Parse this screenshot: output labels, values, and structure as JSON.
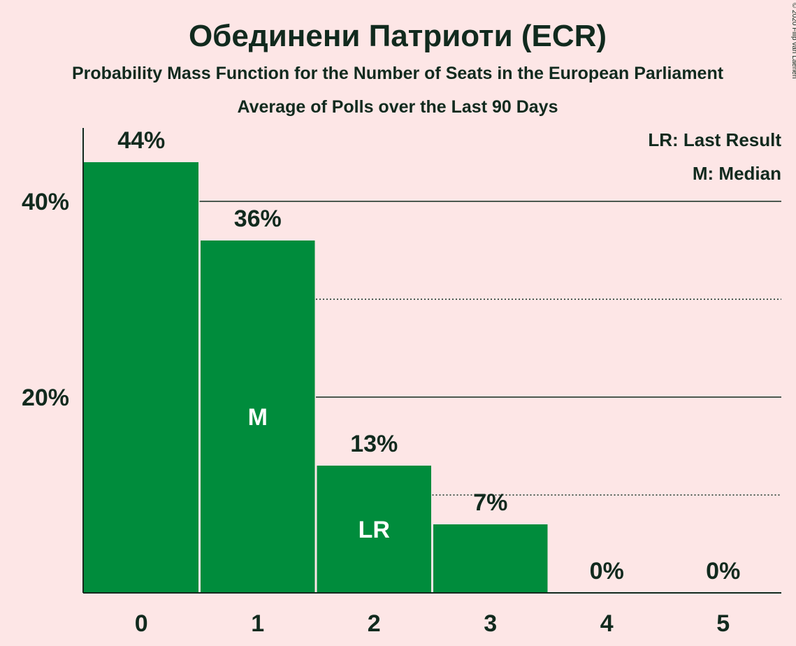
{
  "title": "Обединени Патриоти (ECR)",
  "subtitle": "Probability Mass Function for the Number of Seats in the European Parliament",
  "subtitle2": "Average of Polls over the Last 90 Days",
  "legend": {
    "last_result": "LR: Last Result",
    "median": "M: Median"
  },
  "copyright": "© 2020 Filip van Laenen",
  "colors": {
    "background": "#fde6e6",
    "bar": "#008c3c",
    "text": "#112a1e"
  },
  "chart_data": {
    "type": "bar",
    "categories": [
      "0",
      "1",
      "2",
      "3",
      "4",
      "5"
    ],
    "values": [
      44,
      36,
      13,
      7,
      0,
      0
    ],
    "value_labels": [
      "44%",
      "36%",
      "13%",
      "7%",
      "0%",
      "0%"
    ],
    "ylim": [
      0,
      48
    ],
    "yticks": [
      20,
      40
    ],
    "ytick_labels": [
      "20%",
      "40%"
    ],
    "gridlines_solid": [
      20,
      40
    ],
    "gridlines_dotted": [
      10,
      30
    ],
    "markers": [
      {
        "category": "1",
        "label": "M"
      },
      {
        "category": "2",
        "label": "LR"
      }
    ]
  }
}
